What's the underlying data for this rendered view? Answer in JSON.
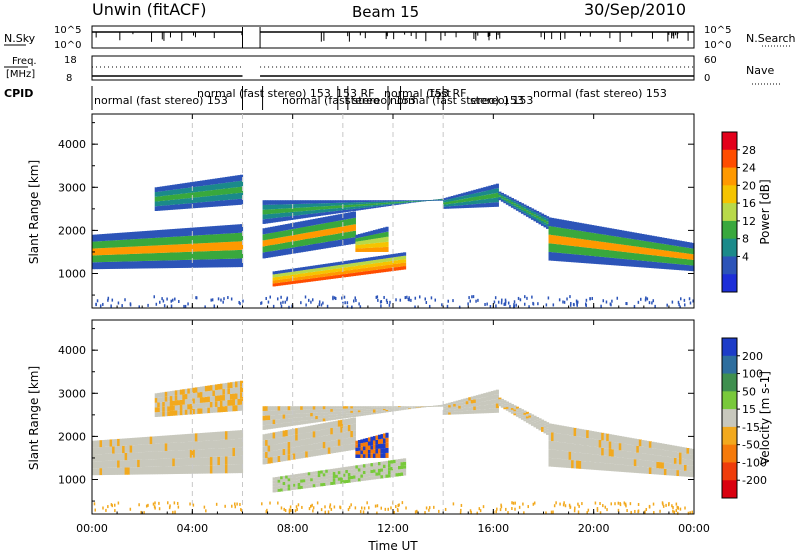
{
  "header": {
    "station": "Unwin (fitACF)",
    "beam": "Beam 15",
    "date": "30/Sep/2010"
  },
  "chart_data": [
    {
      "type": "line",
      "name_left": "N.Sky",
      "name_right": "N.Search",
      "y_ticks_left": [
        "10^5",
        "10^0"
      ],
      "y_ticks_right": [
        "10^5",
        "10^0"
      ]
    },
    {
      "type": "line",
      "label_left": "Freq.",
      "unit_left": "[MHz]",
      "y_ticks_left": [
        "18",
        "8"
      ],
      "label_right": "Nave",
      "y_ticks_right": [
        "60",
        "0"
      ]
    },
    {
      "type": "table",
      "label": "CPID",
      "entries": [
        "normal (fast stereo) 153",
        "normal (fast stereo) 153",
        "normal (fast stereo) 153",
        "153 RF",
        "stereo",
        "normal (fast",
        "normal (fast stereo) 153",
        "153 RF",
        "stereo) 153",
        "normal (fast stereo) 153"
      ]
    },
    {
      "type": "heatmap",
      "quantity": "Power",
      "ylabel": "Slant Range [km]",
      "ylim": [
        200,
        4700
      ],
      "yticks": [
        "1000",
        "2000",
        "3000",
        "4000"
      ],
      "xlim": [
        0,
        24
      ],
      "colorbar": {
        "label": "Power [dB]",
        "ticks": [
          "28",
          "24",
          "20",
          "16",
          "12",
          "8",
          "4"
        ],
        "colors": [
          "#e3001b",
          "#ff4d00",
          "#ff9900",
          "#f5c400",
          "#b8d94a",
          "#39a83d",
          "#1b8a8a",
          "#2c54b8",
          "#1d2fd8"
        ]
      }
    },
    {
      "type": "heatmap",
      "quantity": "Velocity",
      "ylabel": "Slant Range [km]",
      "ylim": [
        200,
        4700
      ],
      "yticks": [
        "1000",
        "2000",
        "3000",
        "4000"
      ],
      "xlim": [
        0,
        24
      ],
      "colorbar": {
        "label": "Velocity [m s-1]",
        "ticks": [
          "200",
          "100",
          "50",
          "15",
          "-15",
          "-50",
          "-100",
          "-200"
        ],
        "colors": [
          "#1d3cc8",
          "#2e6e9e",
          "#3f8f4f",
          "#79c93b",
          "#c8c8bd",
          "#f2a91e",
          "#f57a0a",
          "#ef3d0b",
          "#d9000f"
        ]
      }
    }
  ],
  "xaxis": {
    "label": "Time UT",
    "ticks": [
      "00:00",
      "04:00",
      "08:00",
      "12:00",
      "16:00",
      "20:00",
      "00:00"
    ],
    "tick_hours": [
      0,
      4,
      8,
      12,
      16,
      20,
      24
    ],
    "dashed_hours": [
      4.0,
      6.0,
      8.0,
      10.0,
      12.0,
      14.0
    ]
  }
}
